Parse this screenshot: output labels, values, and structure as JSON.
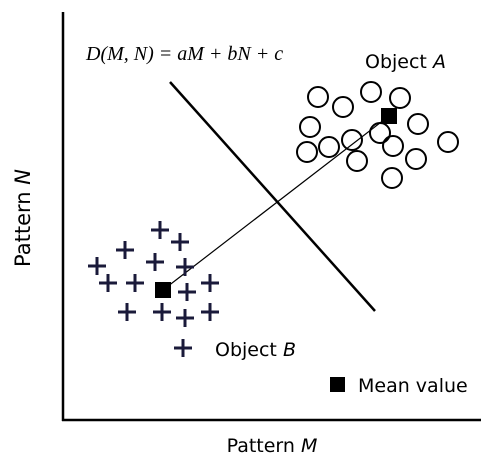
{
  "equation": "D(M, N) = aM + bN + c",
  "object_a": {
    "word": "Object",
    "letter": "A"
  },
  "object_b": {
    "word": "Object",
    "letter": "B"
  },
  "legend": "Mean value",
  "x_axis": {
    "word": "Pattern",
    "letter": "M"
  },
  "y_axis": {
    "word": "Pattern",
    "letter": "N"
  }
}
